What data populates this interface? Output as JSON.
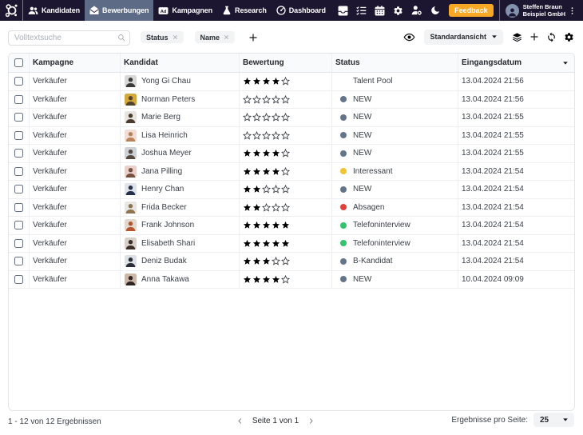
{
  "navbar": {
    "items": [
      {
        "label": "Kandidaten",
        "icon": "users-icon",
        "active": false
      },
      {
        "label": "Bewerbungen",
        "icon": "mail-open-icon",
        "active": true
      },
      {
        "label": "Kampagnen",
        "icon": "ad-icon",
        "active": false
      },
      {
        "label": "Research",
        "icon": "flask-icon",
        "active": false
      },
      {
        "label": "Dashboard",
        "icon": "gauge-icon",
        "active": false
      }
    ],
    "action_icons": [
      "inbox-icon",
      "tasks-icon",
      "calendar-icon",
      "gear-icon",
      "user-gear-icon",
      "moon-icon"
    ],
    "feedback_label": "Feedback",
    "user_name": "Steffen Braun",
    "user_company": "Beispiel GmbH",
    "colors": {
      "bar_bg": "#1c1631",
      "active_tab_bg": "#5d6b87",
      "feedback_bg": "#f9a825"
    }
  },
  "toolbar": {
    "search_placeholder": "Volltextsuche",
    "filters": [
      {
        "label": "Status"
      },
      {
        "label": "Name"
      }
    ],
    "view_select_value": "Standardansicht",
    "right_icons": [
      "eye-icon",
      "layers-icon",
      "plus-icon",
      "refresh-icon",
      "gear-icon"
    ]
  },
  "table": {
    "columns": [
      "Kampagne",
      "Kandidat",
      "Bewertung",
      "Status",
      "Eingangsdatum"
    ],
    "sorted_column": "Eingangsdatum",
    "rating_max": 5,
    "rows": [
      {
        "campaign": "Verkäufer",
        "name": "Yong Gi Chau",
        "rating": 4,
        "status": "Talent Pool",
        "status_color": null,
        "date": "13.04.2024 21:56",
        "avatar_bg": "#d8d8d6",
        "avatar_fg": "#3c3a38"
      },
      {
        "campaign": "Verkäufer",
        "name": "Norman Peters",
        "rating": 0,
        "status": "NEW",
        "status_color": "#64748b",
        "date": "13.04.2024 21:56",
        "avatar_bg": "#d3a93f",
        "avatar_fg": "#54432c"
      },
      {
        "campaign": "Verkäufer",
        "name": "Marie Berg",
        "rating": 0,
        "status": "NEW",
        "status_color": "#64748b",
        "date": "13.04.2024 21:55",
        "avatar_bg": "#e8e5e0",
        "avatar_fg": "#4a3b31"
      },
      {
        "campaign": "Verkäufer",
        "name": "Lisa Heinrich",
        "rating": 0,
        "status": "NEW",
        "status_color": "#64748b",
        "date": "13.04.2024 21:55",
        "avatar_bg": "#f0ddd5",
        "avatar_fg": "#b9835a"
      },
      {
        "campaign": "Verkäufer",
        "name": "Joshua Meyer",
        "rating": 4,
        "status": "NEW",
        "status_color": "#64748b",
        "date": "13.04.2024 21:55",
        "avatar_bg": "#ccd2d6",
        "avatar_fg": "#57493d"
      },
      {
        "campaign": "Verkäufer",
        "name": "Jana Pilling",
        "rating": 4,
        "status": "Interessant",
        "status_color": "#f0c330",
        "date": "13.04.2024 21:54",
        "avatar_bg": "#ead0ca",
        "avatar_fg": "#74503f"
      },
      {
        "campaign": "Verkäufer",
        "name": "Henry Chan",
        "rating": 2,
        "status": "NEW",
        "status_color": "#64748b",
        "date": "13.04.2024 21:54",
        "avatar_bg": "#dfe4ea",
        "avatar_fg": "#25304a"
      },
      {
        "campaign": "Verkäufer",
        "name": "Frida Becker",
        "rating": 2,
        "status": "Absagen",
        "status_color": "#df4037",
        "date": "13.04.2024 21:54",
        "avatar_bg": "#e7e6e2",
        "avatar_fg": "#8d7350"
      },
      {
        "campaign": "Verkäufer",
        "name": "Frank Johnson",
        "rating": 5,
        "status": "Telefoninterview",
        "status_color": "#35c26d",
        "date": "13.04.2024 21:54",
        "avatar_bg": "#e2d8cd",
        "avatar_fg": "#b5542e"
      },
      {
        "campaign": "Verkäufer",
        "name": "Elisabeth Shari",
        "rating": 5,
        "status": "Telefoninterview",
        "status_color": "#35c26d",
        "date": "13.04.2024 21:54",
        "avatar_bg": "#d8d1ca",
        "avatar_fg": "#3d2f29"
      },
      {
        "campaign": "Verkäufer",
        "name": "Deniz Budak",
        "rating": 3,
        "status": "B-Kandidat",
        "status_color": "#64748b",
        "date": "13.04.2024 21:54",
        "avatar_bg": "#dde0e4",
        "avatar_fg": "#272c36"
      },
      {
        "campaign": "Verkäufer",
        "name": "Anna Takawa",
        "rating": 4,
        "status": "NEW",
        "status_color": "#64748b",
        "date": "10.04.2024 09:09",
        "avatar_bg": "#cdb9a9",
        "avatar_fg": "#2f2421"
      }
    ]
  },
  "footer": {
    "results_summary": "1 - 12 von 12 Ergebnissen",
    "page_label": "Seite 1 von 1",
    "per_page_label": "Ergebnisse pro Seite:",
    "per_page_value": "25"
  }
}
